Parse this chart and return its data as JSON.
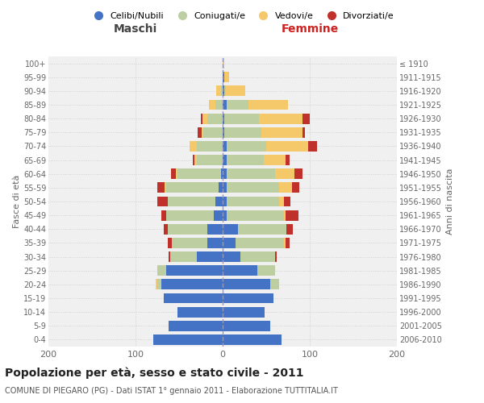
{
  "age_groups": [
    "0-4",
    "5-9",
    "10-14",
    "15-19",
    "20-24",
    "25-29",
    "30-34",
    "35-39",
    "40-44",
    "45-49",
    "50-54",
    "55-59",
    "60-64",
    "65-69",
    "70-74",
    "75-79",
    "80-84",
    "85-89",
    "90-94",
    "95-99",
    "100+"
  ],
  "birth_years": [
    "2006-2010",
    "2001-2005",
    "1996-2000",
    "1991-1995",
    "1986-1990",
    "1981-1985",
    "1976-1980",
    "1971-1975",
    "1966-1970",
    "1961-1965",
    "1956-1960",
    "1951-1955",
    "1946-1950",
    "1941-1945",
    "1936-1940",
    "1931-1935",
    "1926-1930",
    "1921-1925",
    "1916-1920",
    "1911-1915",
    "≤ 1910"
  ],
  "males": {
    "celibi": [
      80,
      62,
      52,
      68,
      70,
      65,
      30,
      18,
      18,
      10,
      8,
      5,
      2,
      0,
      0,
      0,
      0,
      0,
      0,
      0,
      0
    ],
    "coniugati": [
      0,
      0,
      0,
      0,
      5,
      10,
      30,
      40,
      45,
      55,
      55,
      60,
      50,
      30,
      30,
      22,
      18,
      8,
      2,
      0,
      0
    ],
    "vedovi": [
      0,
      0,
      0,
      0,
      2,
      0,
      0,
      0,
      0,
      0,
      0,
      2,
      2,
      2,
      8,
      2,
      5,
      8,
      5,
      0,
      0
    ],
    "divorziati": [
      0,
      0,
      0,
      0,
      0,
      0,
      2,
      5,
      5,
      5,
      12,
      8,
      5,
      2,
      0,
      5,
      2,
      0,
      0,
      0,
      0
    ]
  },
  "females": {
    "nubili": [
      68,
      55,
      48,
      58,
      55,
      40,
      20,
      15,
      18,
      5,
      5,
      5,
      5,
      5,
      5,
      2,
      2,
      5,
      2,
      2,
      0
    ],
    "coniugate": [
      0,
      0,
      0,
      0,
      10,
      20,
      40,
      55,
      55,
      65,
      60,
      60,
      55,
      42,
      45,
      42,
      40,
      25,
      2,
      0,
      0
    ],
    "vedove": [
      0,
      0,
      0,
      0,
      0,
      0,
      0,
      2,
      0,
      2,
      5,
      15,
      22,
      25,
      48,
      48,
      50,
      45,
      22,
      5,
      2
    ],
    "divorziate": [
      0,
      0,
      0,
      0,
      0,
      0,
      2,
      5,
      8,
      15,
      8,
      8,
      10,
      5,
      10,
      2,
      8,
      0,
      0,
      0,
      0
    ]
  },
  "colors": {
    "celibi_nubili": "#4472C4",
    "coniugati": "#BDCFA0",
    "vedovi": "#F5C96A",
    "divorziati": "#C0312B"
  },
  "xlim": 200,
  "title": "Popolazione per età, sesso e stato civile - 2011",
  "subtitle": "COMUNE DI PIEGARO (PG) - Dati ISTAT 1° gennaio 2011 - Elaborazione TUTTITALIA.IT",
  "ylabel_left": "Fasce di età",
  "ylabel_right": "Anni di nascita",
  "xlabel_left": "Maschi",
  "xlabel_right": "Femmine",
  "legend_labels": [
    "Celibi/Nubili",
    "Coniugati/e",
    "Vedovi/e",
    "Divorziati/e"
  ],
  "background_color": "#ffffff",
  "plot_background": "#f0f0f0",
  "grid_color": "#cccccc",
  "bar_height": 0.75
}
